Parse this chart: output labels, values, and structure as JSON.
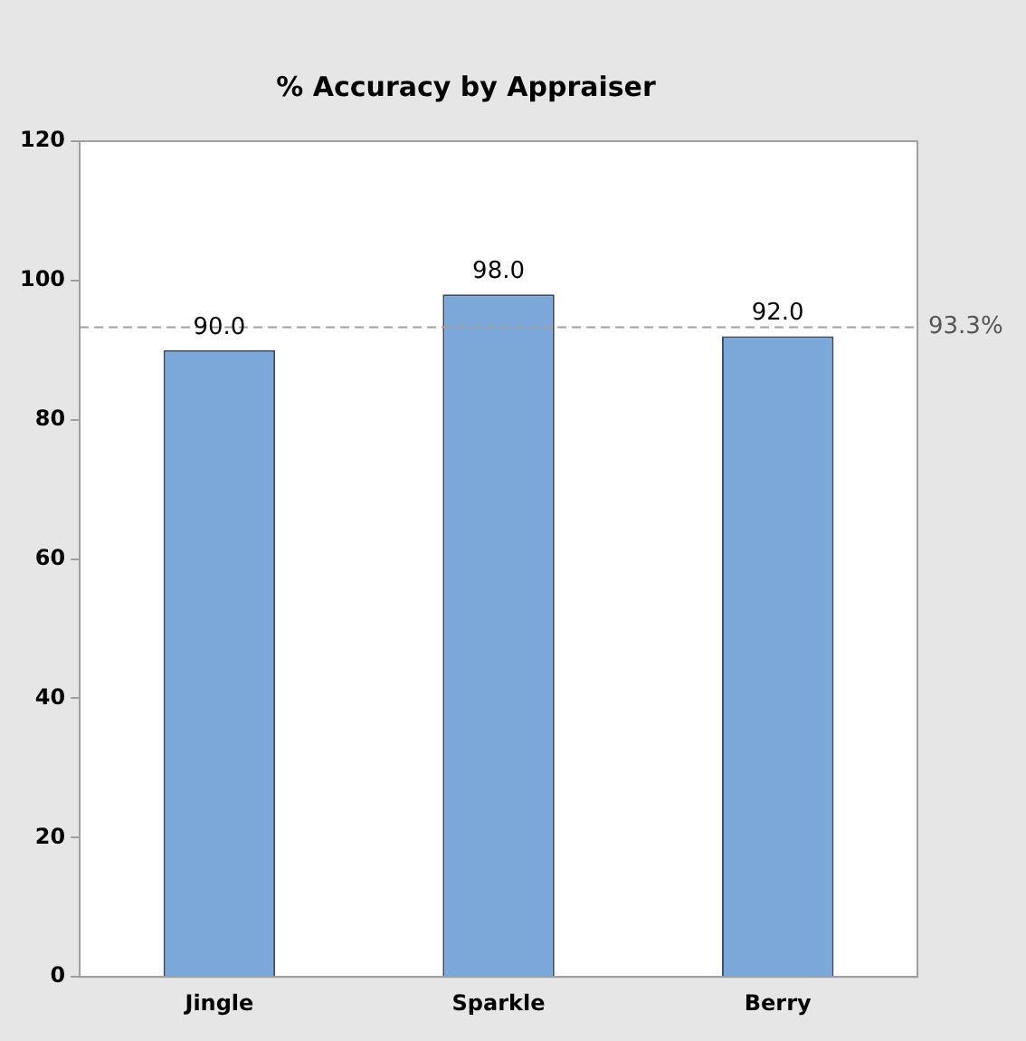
{
  "chart_data": {
    "type": "bar",
    "title": "% Accuracy by Appraiser",
    "categories": [
      "Jingle",
      "Sparkle",
      "Berry"
    ],
    "values": [
      90,
      98,
      92
    ],
    "color": "#7ba7d9",
    "value_labels": [
      "90.0",
      "98.0",
      "92.0"
    ],
    "ylim": [
      0,
      120
    ],
    "yticks": [
      0,
      20,
      40,
      60,
      80,
      100,
      120
    ],
    "ref_lines": [
      {
        "axis": "y",
        "value": 93.3,
        "label": "93.3%",
        "color": "#a0a0a0",
        "line_style": "dashed"
      }
    ],
    "grid": false,
    "legend": false
  }
}
